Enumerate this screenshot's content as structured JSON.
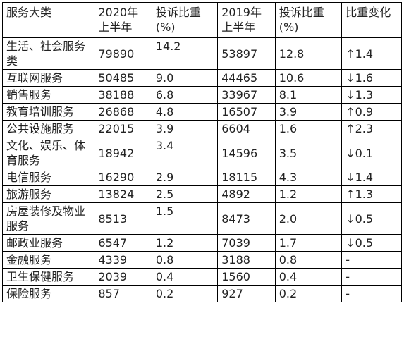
{
  "table": {
    "headers": [
      "服务大类",
      "2020年上半年",
      "投诉比重\n(%)",
      "2019年上半年",
      "投诉比重\n(%)",
      "比重变化"
    ],
    "rows": [
      {
        "category": "生活、社会服务类",
        "y2020": "79890",
        "share2020": "14.2",
        "y2019": "53897",
        "share2019": "12.8",
        "change": "↑1.4"
      },
      {
        "category": "互联网服务",
        "y2020": "50485",
        "share2020": "9.0",
        "y2019": "44465",
        "share2019": "10.6",
        "change": "↓1.6"
      },
      {
        "category": "销售服务",
        "y2020": "38188",
        "share2020": "6.8",
        "y2019": "33967",
        "share2019": "8.1",
        "change": "↓1.3"
      },
      {
        "category": "教育培训服务",
        "y2020": "26868",
        "share2020": "4.8",
        "y2019": "16507",
        "share2019": "3.9",
        "change": "↑0.9"
      },
      {
        "category": "公共设施服务",
        "y2020": "22015",
        "share2020": "3.9",
        "y2019": "6604",
        "share2019": "1.6",
        "change": "↑2.3"
      },
      {
        "category": "文化、娱乐、体育服务",
        "y2020": "18942",
        "share2020": "3.4",
        "y2019": "14596",
        "share2019": "3.5",
        "change": "↓0.1"
      },
      {
        "category": "电信服务",
        "y2020": "16290",
        "share2020": "2.9",
        "y2019": "18115",
        "share2019": "4.3",
        "change": "↓1.4"
      },
      {
        "category": "旅游服务",
        "y2020": "13824",
        "share2020": "2.5",
        "y2019": "4892",
        "share2019": "1.2",
        "change": "↑1.3"
      },
      {
        "category": "房屋装修及物业服务",
        "y2020": "8513",
        "share2020": "1.5",
        "y2019": "8473",
        "share2019": "2.0",
        "change": "↓0.5"
      },
      {
        "category": "邮政业服务",
        "y2020": "6547",
        "share2020": "1.2",
        "y2019": "7039",
        "share2019": "1.7",
        "change": "↓0.5"
      },
      {
        "category": "金融服务",
        "y2020": "4339",
        "share2020": "0.8",
        "y2019": "3188",
        "share2019": "0.8",
        "change": "-"
      },
      {
        "category": "卫生保健服务",
        "y2020": "2039",
        "share2020": "0.4",
        "y2019": "1560",
        "share2019": "0.4",
        "change": "-"
      },
      {
        "category": "保险服务",
        "y2020": "857",
        "share2020": "0.2",
        "y2019": "927",
        "share2019": "0.2",
        "change": "-"
      }
    ]
  }
}
